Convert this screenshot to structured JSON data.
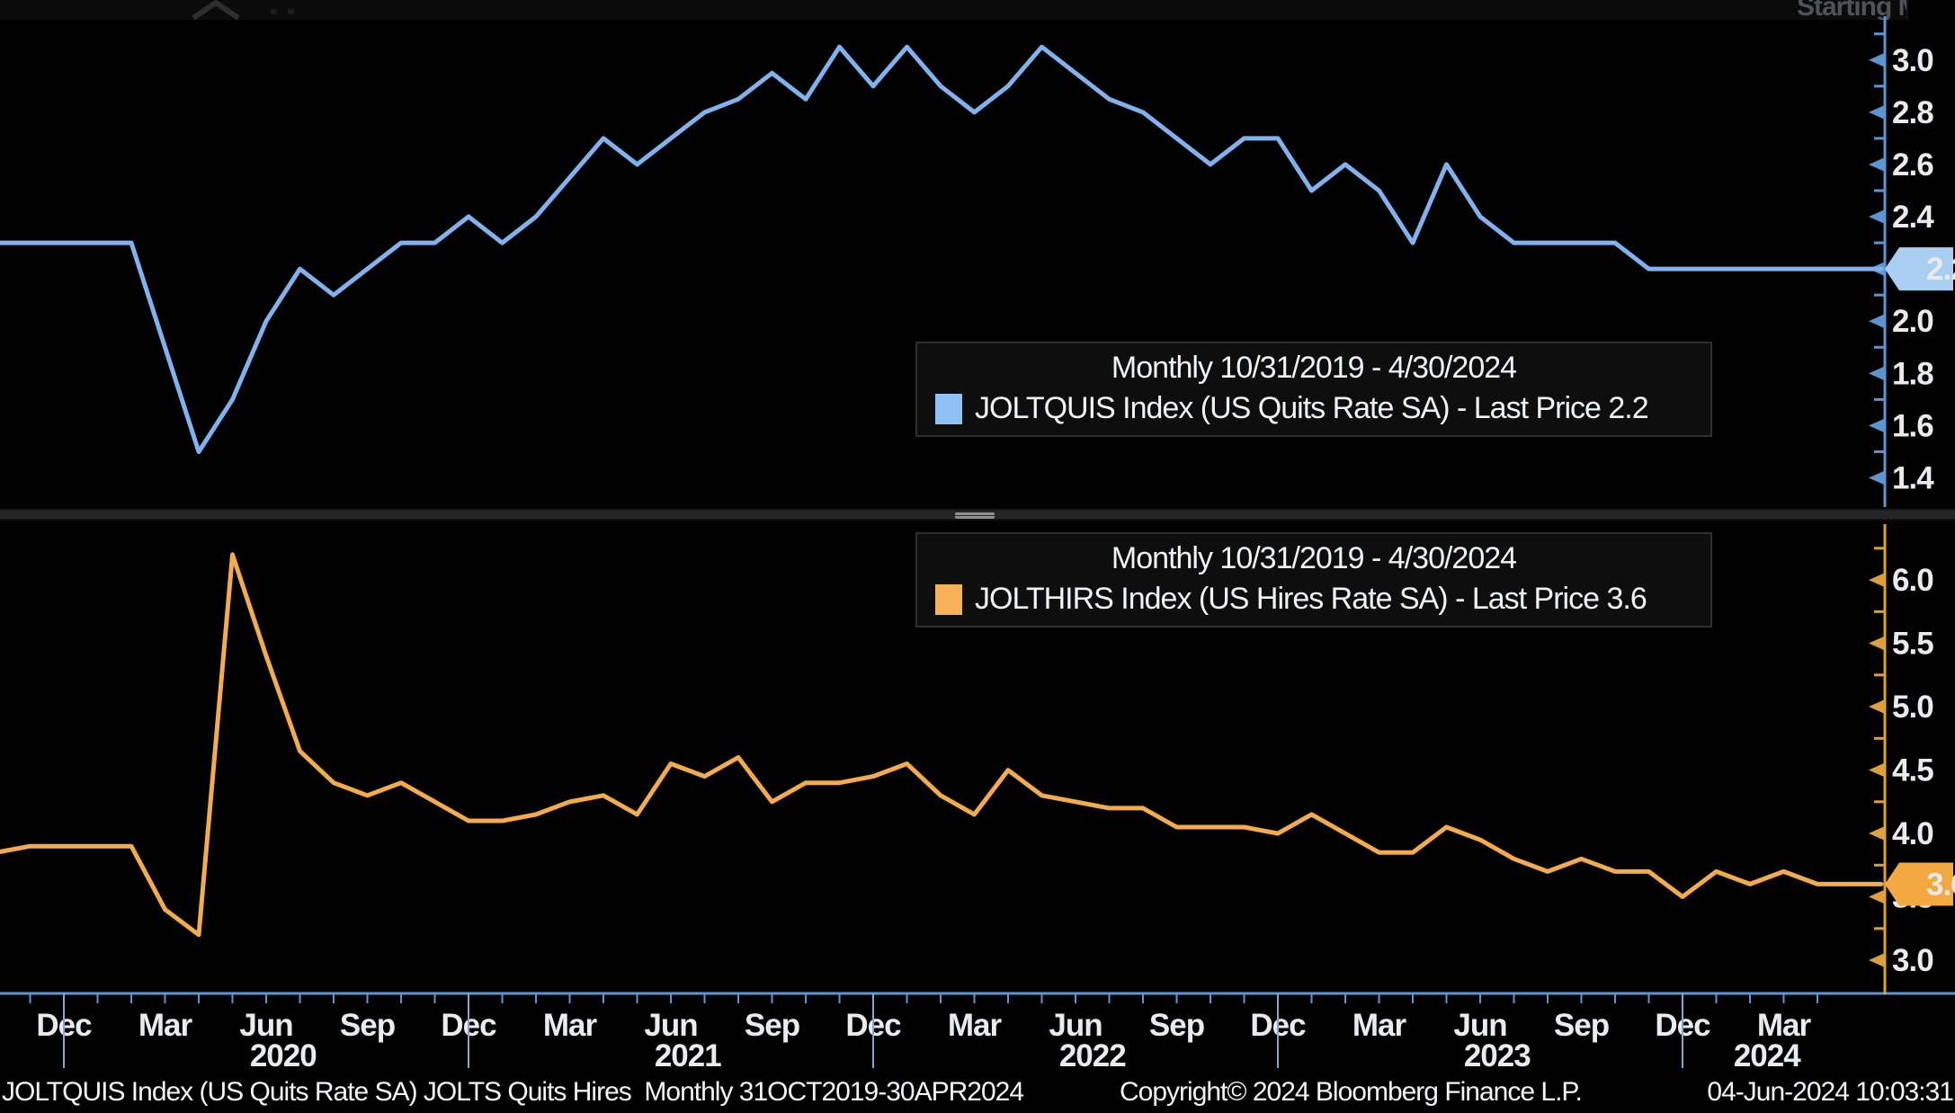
{
  "top_strip": {
    "partial_text": "Starting M"
  },
  "legends": [
    {
      "period": "Monthly 10/31/2019 - 4/30/2024",
      "series": "JOLTQUIS Index (US Quits Rate SA) - Last Price 2.2",
      "swatch_color": "#8fc2f4"
    },
    {
      "period": "Monthly 10/31/2019 - 4/30/2024",
      "series": "JOLTHIRS Index (US Hires Rate SA) - Last Price 3.6",
      "swatch_color": "#f7b159"
    }
  ],
  "status_bar": {
    "left": "JOLTQUIS Index (US Quits Rate SA) JOLTS Quits Hires  Monthly 31OCT2019-30APR2024",
    "copyright": "Copyright© 2024 Bloomberg Finance L.P.",
    "datetime": "04-Jun-2024 10:03:31"
  },
  "chart_data": {
    "type": "line",
    "title": "JOLTS Quits Hires",
    "x_range": "Monthly 10/31/2019 - 4/30/2024",
    "grid": false,
    "legend_position": "inside-right",
    "x_categories": [
      "Oct 2019",
      "Nov 2019",
      "Dec 2019",
      "Jan 2020",
      "Feb 2020",
      "Mar 2020",
      "Apr 2020",
      "May 2020",
      "Jun 2020",
      "Jul 2020",
      "Aug 2020",
      "Sep 2020",
      "Oct 2020",
      "Nov 2020",
      "Dec 2020",
      "Jan 2021",
      "Feb 2021",
      "Mar 2021",
      "Apr 2021",
      "May 2021",
      "Jun 2021",
      "Jul 2021",
      "Aug 2021",
      "Sep 2021",
      "Oct 2021",
      "Nov 2021",
      "Dec 2021",
      "Jan 2022",
      "Feb 2022",
      "Mar 2022",
      "Apr 2022",
      "May 2022",
      "Jun 2022",
      "Jul 2022",
      "Aug 2022",
      "Sep 2022",
      "Oct 2022",
      "Nov 2022",
      "Dec 2022",
      "Jan 2023",
      "Feb 2023",
      "Mar 2023",
      "Apr 2023",
      "May 2023",
      "Jun 2023",
      "Jul 2023",
      "Aug 2023",
      "Sep 2023",
      "Oct 2023",
      "Nov 2023",
      "Dec 2023",
      "Jan 2024",
      "Feb 2024",
      "Mar 2024",
      "Apr 2024"
    ],
    "x_tick_label_months": [
      "Mar",
      "Jun",
      "Sep",
      "Dec"
    ],
    "panels": [
      {
        "name": "JOLTQUIS Index (US Quits Rate SA)",
        "last_price": "2.2",
        "color": "#7fb2ef",
        "axis_color": "#5b96d2",
        "badge_bg": "#aacdf2",
        "badge_text_color": "#0a1f3c",
        "ylim": [
          1.295,
          3.161
        ],
        "yticks": [
          1.4,
          1.6,
          1.8,
          2.0,
          2.2,
          2.4,
          2.6,
          2.8,
          3.0
        ],
        "minor_tick_step": 0.1,
        "values": [
          2.3,
          2.3,
          2.3,
          2.3,
          2.3,
          1.9,
          1.5,
          1.7,
          2.0,
          2.2,
          2.1,
          2.2,
          2.3,
          2.3,
          2.4,
          2.3,
          2.4,
          2.55,
          2.7,
          2.6,
          2.7,
          2.8,
          2.85,
          2.95,
          2.85,
          3.05,
          2.9,
          3.05,
          2.9,
          2.8,
          2.9,
          3.05,
          2.95,
          2.85,
          2.8,
          2.7,
          2.6,
          2.7,
          2.7,
          2.5,
          2.6,
          2.5,
          2.3,
          2.6,
          2.4,
          2.3,
          2.3,
          2.3,
          2.3,
          2.2,
          2.2,
          2.2,
          2.2,
          2.2,
          2.2
        ]
      },
      {
        "name": "JOLTHIRS Index (US Hires Rate SA)",
        "last_price": "3.6",
        "color": "#f3ab4c",
        "axis_color": "#dfa03c",
        "badge_bg": "#f3a93f",
        "badge_text_color": "#221200",
        "ylim": [
          2.745,
          6.426
        ],
        "yticks": [
          3.0,
          3.5,
          4.0,
          4.5,
          5.0,
          5.5,
          6.0
        ],
        "minor_tick_step": 0.25,
        "values": [
          3.85,
          3.9,
          3.9,
          3.9,
          3.9,
          3.4,
          3.2,
          6.2,
          5.4,
          4.65,
          4.4,
          4.3,
          4.4,
          4.25,
          4.1,
          4.1,
          4.15,
          4.25,
          4.3,
          4.15,
          4.55,
          4.45,
          4.6,
          4.25,
          4.4,
          4.4,
          4.45,
          4.55,
          4.3,
          4.15,
          4.5,
          4.3,
          4.25,
          4.2,
          4.2,
          4.05,
          4.05,
          4.05,
          4.0,
          4.15,
          4.0,
          3.85,
          3.85,
          4.05,
          3.95,
          3.8,
          3.7,
          3.8,
          3.7,
          3.7,
          3.5,
          3.7,
          3.6,
          3.7,
          3.6
        ]
      }
    ]
  }
}
